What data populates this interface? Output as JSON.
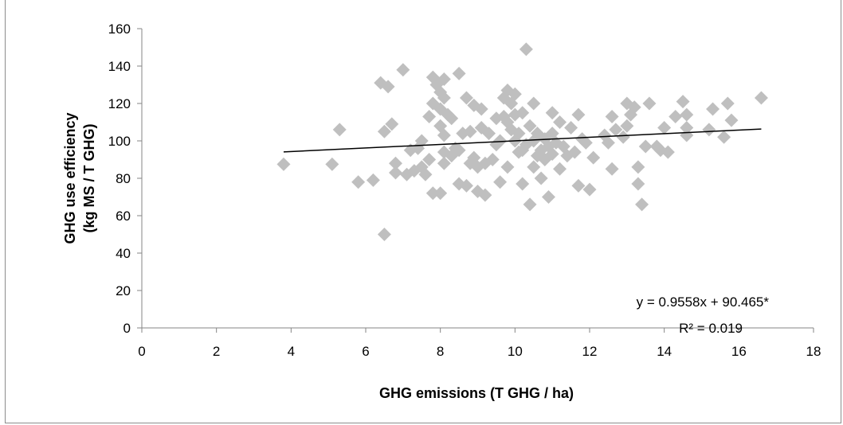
{
  "chart_data": {
    "type": "scatter",
    "xlabel": "GHG emissions (T GHG / ha)",
    "ylabel_lines": [
      "GHG use efficiency",
      "(kg MS / T GHG)"
    ],
    "xlim": [
      0,
      18
    ],
    "ylim": [
      0,
      160
    ],
    "x_ticks": [
      "0",
      "2",
      "4",
      "6",
      "8",
      "10",
      "12",
      "14",
      "16",
      "18"
    ],
    "y_ticks": [
      "0",
      "20",
      "40",
      "60",
      "80",
      "100",
      "120",
      "140",
      "160"
    ],
    "grid": false,
    "marker_color": "#bfbfbf",
    "trend_color": "#000000",
    "trendline": {
      "slope": 0.9558,
      "intercept": 90.465,
      "x_range": [
        3.8,
        16.6
      ]
    },
    "annotations": {
      "equation": "y = 0.9558x + 90.465*",
      "r2": "R² = 0.019"
    },
    "points": [
      [
        3.8,
        87.5
      ],
      [
        5.1,
        87.5
      ],
      [
        5.3,
        106
      ],
      [
        5.8,
        78
      ],
      [
        6.2,
        79
      ],
      [
        6.4,
        131
      ],
      [
        6.5,
        50
      ],
      [
        6.5,
        105
      ],
      [
        6.6,
        129
      ],
      [
        6.7,
        109
      ],
      [
        6.8,
        83
      ],
      [
        6.8,
        88
      ],
      [
        7.0,
        138
      ],
      [
        7.1,
        82
      ],
      [
        7.2,
        95
      ],
      [
        7.3,
        84
      ],
      [
        7.4,
        96
      ],
      [
        7.5,
        100
      ],
      [
        7.5,
        86
      ],
      [
        7.6,
        82
      ],
      [
        7.7,
        90
      ],
      [
        7.7,
        113
      ],
      [
        7.8,
        134
      ],
      [
        7.8,
        120
      ],
      [
        7.8,
        72
      ],
      [
        7.9,
        130
      ],
      [
        8.0,
        126
      ],
      [
        8.0,
        117
      ],
      [
        8.0,
        108
      ],
      [
        8.0,
        72
      ],
      [
        8.1,
        133
      ],
      [
        8.1,
        123
      ],
      [
        8.1,
        103
      ],
      [
        8.1,
        94
      ],
      [
        8.1,
        88
      ],
      [
        8.2,
        114
      ],
      [
        8.3,
        112
      ],
      [
        8.3,
        92
      ],
      [
        8.4,
        96
      ],
      [
        8.5,
        136
      ],
      [
        8.5,
        95
      ],
      [
        8.5,
        77
      ],
      [
        8.6,
        104
      ],
      [
        8.7,
        76
      ],
      [
        8.7,
        123
      ],
      [
        8.8,
        88
      ],
      [
        8.8,
        105
      ],
      [
        8.9,
        119
      ],
      [
        8.9,
        91
      ],
      [
        9.0,
        73
      ],
      [
        9.0,
        86
      ],
      [
        9.1,
        117
      ],
      [
        9.1,
        107
      ],
      [
        9.2,
        71
      ],
      [
        9.2,
        88
      ],
      [
        9.3,
        104
      ],
      [
        9.4,
        90
      ],
      [
        9.5,
        98
      ],
      [
        9.5,
        112
      ],
      [
        9.6,
        78
      ],
      [
        9.6,
        100
      ],
      [
        9.7,
        113
      ],
      [
        9.7,
        123
      ],
      [
        9.8,
        86
      ],
      [
        9.8,
        110
      ],
      [
        9.8,
        127
      ],
      [
        9.9,
        120
      ],
      [
        9.9,
        106
      ],
      [
        10.0,
        125
      ],
      [
        10.0,
        114
      ],
      [
        10.0,
        100
      ],
      [
        10.1,
        94
      ],
      [
        10.1,
        104
      ],
      [
        10.2,
        95
      ],
      [
        10.2,
        77
      ],
      [
        10.2,
        115
      ],
      [
        10.3,
        149
      ],
      [
        10.3,
        98
      ],
      [
        10.4,
        66
      ],
      [
        10.4,
        108
      ],
      [
        10.5,
        100
      ],
      [
        10.5,
        120
      ],
      [
        10.5,
        86
      ],
      [
        10.6,
        92
      ],
      [
        10.6,
        104
      ],
      [
        10.7,
        80
      ],
      [
        10.7,
        95
      ],
      [
        10.8,
        101
      ],
      [
        10.8,
        90
      ],
      [
        10.9,
        97
      ],
      [
        10.9,
        70
      ],
      [
        11.0,
        115
      ],
      [
        11.0,
        104
      ],
      [
        11.0,
        93
      ],
      [
        11.1,
        99
      ],
      [
        11.2,
        110
      ],
      [
        11.2,
        85
      ],
      [
        11.3,
        97
      ],
      [
        11.4,
        92
      ],
      [
        11.5,
        107
      ],
      [
        11.6,
        94
      ],
      [
        11.7,
        114
      ],
      [
        11.7,
        76
      ],
      [
        11.8,
        101
      ],
      [
        11.9,
        99
      ],
      [
        12.0,
        74
      ],
      [
        12.1,
        91
      ],
      [
        12.4,
        103
      ],
      [
        12.5,
        99
      ],
      [
        12.6,
        113
      ],
      [
        12.6,
        85
      ],
      [
        12.7,
        106
      ],
      [
        12.9,
        102
      ],
      [
        13.0,
        120
      ],
      [
        13.0,
        108
      ],
      [
        13.1,
        114
      ],
      [
        13.2,
        118
      ],
      [
        13.3,
        86
      ],
      [
        13.3,
        77
      ],
      [
        13.4,
        66
      ],
      [
        13.5,
        97
      ],
      [
        13.6,
        120
      ],
      [
        13.8,
        97
      ],
      [
        13.9,
        95
      ],
      [
        14.0,
        107
      ],
      [
        14.1,
        94
      ],
      [
        14.3,
        113
      ],
      [
        14.5,
        121
      ],
      [
        14.6,
        114
      ],
      [
        14.6,
        107
      ],
      [
        14.6,
        103
      ],
      [
        15.2,
        106
      ],
      [
        15.3,
        117
      ],
      [
        15.6,
        102
      ],
      [
        15.7,
        120
      ],
      [
        15.8,
        111
      ],
      [
        16.6,
        123
      ]
    ]
  }
}
